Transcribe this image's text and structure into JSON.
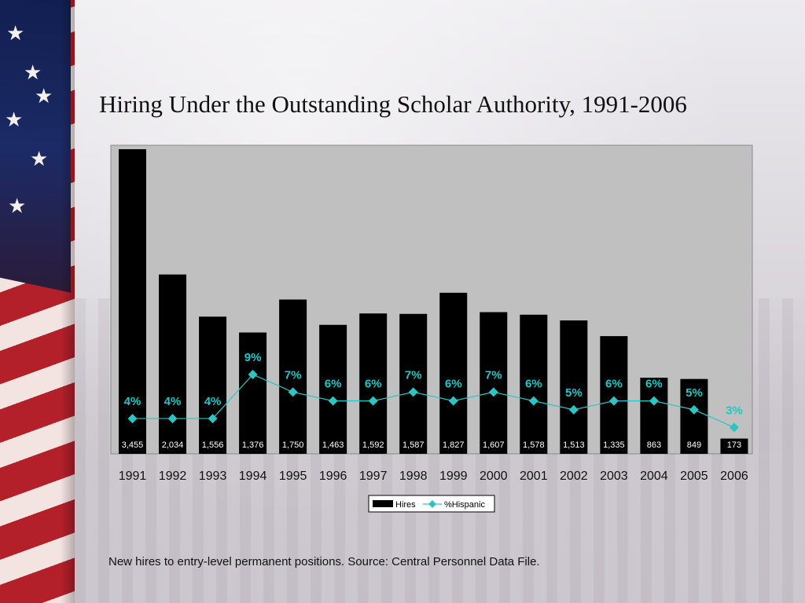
{
  "title": "Hiring Under the Outstanding Scholar Authority, 1991-2006",
  "footnote": "New hires to entry-level permanent positions.  Source:  Central Personnel Data File.",
  "colors": {
    "bar": "#000000",
    "line": "#2ec4c4",
    "plot_bg": "#c0c0c0",
    "pct_label": "#1fc7c7"
  },
  "chart_data": {
    "type": "bar",
    "categories": [
      "1991",
      "1992",
      "1993",
      "1994",
      "1995",
      "1996",
      "1997",
      "1998",
      "1999",
      "2000",
      "2001",
      "2002",
      "2003",
      "2004",
      "2005",
      "2006"
    ],
    "series": [
      {
        "name": "Hires",
        "type": "bar",
        "values": [
          3455,
          2034,
          1556,
          1376,
          1750,
          1463,
          1592,
          1587,
          1827,
          1607,
          1578,
          1513,
          1335,
          863,
          849,
          173
        ],
        "data_labels": [
          "3,455",
          "2,034",
          "1,556",
          "1,376",
          "1,750",
          "1,463",
          "1,592",
          "1,587",
          "1,827",
          "1,607",
          "1,578",
          "1,513",
          "1,335",
          "863",
          "849",
          "173"
        ]
      },
      {
        "name": "%Hispanic",
        "type": "line",
        "marker": "diamond",
        "values": [
          4,
          4,
          4,
          9,
          7,
          6,
          6,
          7,
          6,
          7,
          6,
          5,
          6,
          6,
          5,
          3
        ],
        "data_labels": [
          "4%",
          "4%",
          "4%",
          "9%",
          "7%",
          "6%",
          "6%",
          "7%",
          "6%",
          "7%",
          "6%",
          "5%",
          "6%",
          "6%",
          "5%",
          "3%"
        ]
      }
    ],
    "ylim_hires": [
      0,
      3500
    ],
    "ylim_pct": [
      0,
      35
    ],
    "legend": "bottom-center",
    "grid": false
  }
}
